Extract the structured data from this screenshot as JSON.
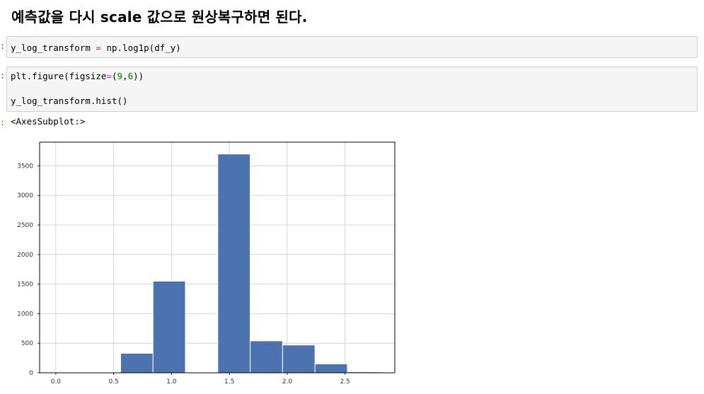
{
  "markdown": {
    "heading": "예측값을 다시 scale 값으로 원상복구하면 된다."
  },
  "cells": [
    {
      "prompt": ":",
      "lines": [
        [
          [
            "y_log_transform ",
            ""
          ],
          [
            "=",
            "op"
          ],
          [
            " np.log1p(df_y)",
            ""
          ]
        ]
      ]
    },
    {
      "prompt": ":",
      "lines": [
        [
          [
            "plt.figure(figsize",
            ""
          ],
          [
            "=",
            "op"
          ],
          [
            "(",
            ""
          ],
          [
            "9",
            "num"
          ],
          [
            ",",
            ""
          ],
          [
            "6",
            "num"
          ],
          [
            "))",
            ""
          ]
        ],
        [],
        [
          [
            "y_log_transform.hist()",
            ""
          ]
        ]
      ]
    }
  ],
  "output": {
    "prompt": ":",
    "text": "<AxesSubplot:>"
  },
  "colors": {
    "bar": "#4c72b0",
    "grid": "#cccccc",
    "axis": "#000000"
  },
  "chart_data": {
    "type": "bar",
    "title": "",
    "xlabel": "",
    "ylabel": "",
    "grid": true,
    "xlim": [
      -0.14,
      2.93
    ],
    "ylim": [
      0,
      3900
    ],
    "xticks": [
      0.0,
      0.5,
      1.0,
      1.5,
      2.0,
      2.5
    ],
    "xtick_labels": [
      "0.0",
      "0.5",
      "1.0",
      "1.5",
      "2.0",
      "2.5"
    ],
    "yticks": [
      0,
      500,
      1000,
      1500,
      2000,
      2500,
      3000,
      3500
    ],
    "ytick_labels": [
      "0",
      "500",
      "1000",
      "1500",
      "2000",
      "2500",
      "3000",
      "3500"
    ],
    "bins": [
      {
        "x0": 0.0,
        "x1": 0.28,
        "value": 0
      },
      {
        "x0": 0.28,
        "x1": 0.56,
        "value": 0
      },
      {
        "x0": 0.56,
        "x1": 0.84,
        "value": 330
      },
      {
        "x0": 0.84,
        "x1": 1.12,
        "value": 1550
      },
      {
        "x0": 1.12,
        "x1": 1.4,
        "value": 0
      },
      {
        "x0": 1.4,
        "x1": 1.68,
        "value": 3700
      },
      {
        "x0": 1.68,
        "x1": 1.96,
        "value": 540
      },
      {
        "x0": 1.96,
        "x1": 2.24,
        "value": 470
      },
      {
        "x0": 2.24,
        "x1": 2.52,
        "value": 150
      },
      {
        "x0": 2.52,
        "x1": 2.8,
        "value": 15
      }
    ]
  }
}
